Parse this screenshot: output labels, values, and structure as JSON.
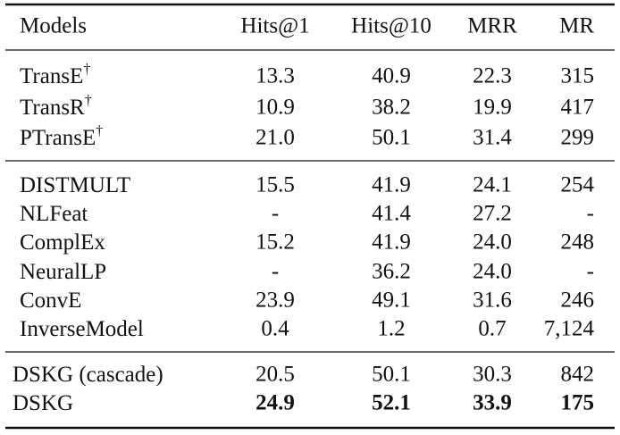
{
  "table": {
    "header": [
      "Models",
      "Hits@1",
      "Hits@10",
      "MRR",
      "MR"
    ],
    "groups": [
      {
        "rows": [
          {
            "model": "TransE",
            "marker": "†",
            "cells": [
              "13.3",
              "40.9",
              "22.3",
              "315"
            ]
          },
          {
            "model": "TransR",
            "marker": "†",
            "cells": [
              "10.9",
              "38.2",
              "19.9",
              "417"
            ]
          },
          {
            "model": "PTransE",
            "marker": "†",
            "cells": [
              "21.0",
              "50.1",
              "31.4",
              "299"
            ]
          }
        ]
      },
      {
        "rows": [
          {
            "model": "DISTMULT",
            "cells": [
              "15.5",
              "41.9",
              "24.1",
              "254"
            ]
          },
          {
            "model": "NLFeat",
            "cells": [
              "-",
              "41.4",
              "27.2",
              "-"
            ]
          },
          {
            "model": "ComplEx",
            "cells": [
              "15.2",
              "41.9",
              "24.0",
              "248"
            ]
          },
          {
            "model": "NeuralLP",
            "cells": [
              "-",
              "36.2",
              "24.0",
              "-"
            ]
          },
          {
            "model": "ConvE",
            "cells": [
              "23.9",
              "49.1",
              "31.6",
              "246"
            ]
          },
          {
            "model": "InverseModel",
            "cells": [
              "0.4",
              "1.2",
              "0.7",
              "7,124"
            ]
          }
        ]
      },
      {
        "rows": [
          {
            "model": "DSKG (cascade)",
            "cells": [
              "20.5",
              "50.1",
              "30.3",
              "842"
            ]
          },
          {
            "model": "DSKG",
            "cells": [
              "24.9",
              "52.1",
              "33.9",
              "175"
            ],
            "bold": true
          }
        ]
      }
    ]
  }
}
